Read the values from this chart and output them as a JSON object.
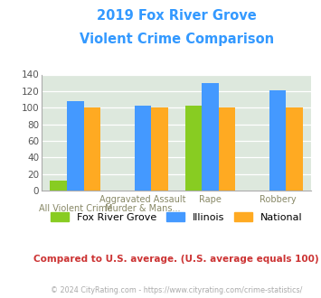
{
  "title_line1": "2019 Fox River Grove",
  "title_line2": "Violent Crime Comparison",
  "title_color": "#3399ff",
  "fox_river_grove": [
    12,
    0,
    102,
    0
  ],
  "illinois": [
    108,
    102,
    130,
    121
  ],
  "national": [
    100,
    100,
    100,
    100
  ],
  "colors": {
    "fox_river_grove": "#88cc22",
    "illinois": "#4499ff",
    "national": "#ffaa22"
  },
  "ylim": [
    0,
    140
  ],
  "yticks": [
    0,
    20,
    40,
    60,
    80,
    100,
    120,
    140
  ],
  "background_color": "#dde8dd",
  "note": "Compared to U.S. average. (U.S. average equals 100)",
  "note_color": "#cc3333",
  "footer": "© 2024 CityRating.com - https://www.cityrating.com/crime-statistics/",
  "footer_color": "#aaaaaa",
  "legend_labels": [
    "Fox River Grove",
    "Illinois",
    "National"
  ],
  "top_labels": [
    "",
    "Aggravated Assault",
    "Rape",
    "Robbery"
  ],
  "bot_labels": [
    "All Violent Crime",
    "Murder & Mans...",
    "",
    ""
  ]
}
